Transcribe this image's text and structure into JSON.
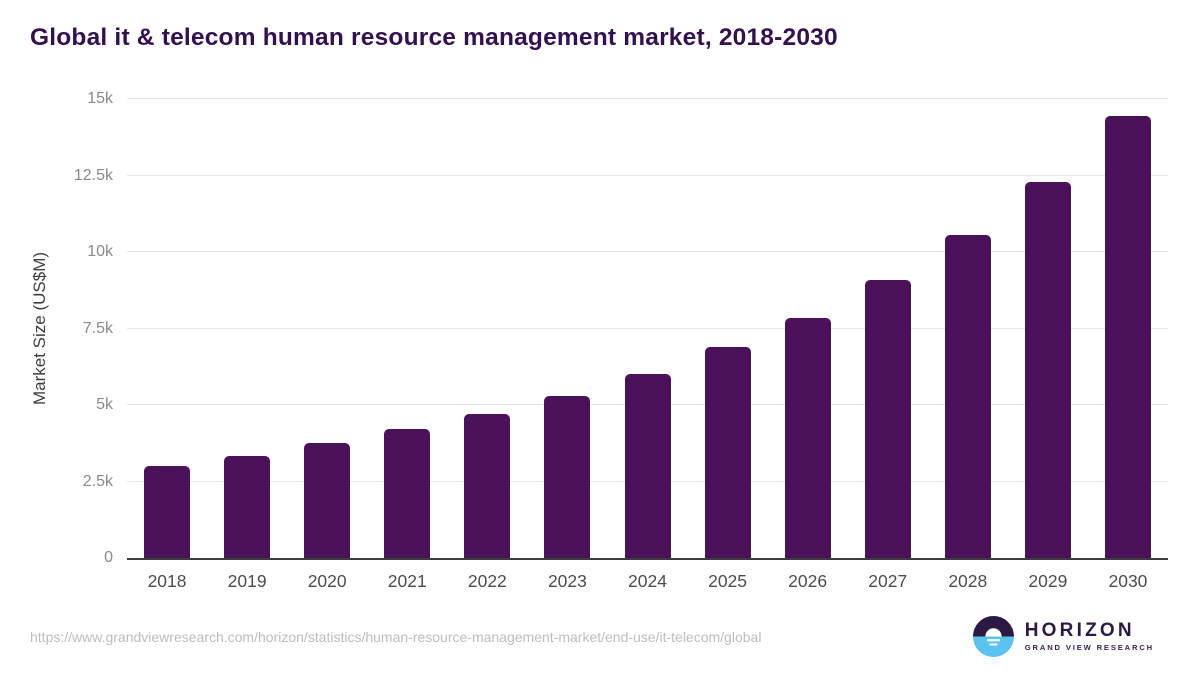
{
  "title": "Global it & telecom human resource management market, 2018-2030",
  "chart_data": {
    "type": "bar",
    "title": "Global it & telecom human resource management market, 2018-2030",
    "categories": [
      "2018",
      "2019",
      "2020",
      "2021",
      "2022",
      "2023",
      "2024",
      "2025",
      "2026",
      "2027",
      "2028",
      "2029",
      "2030"
    ],
    "values": [
      3000,
      3350,
      3750,
      4200,
      4700,
      5300,
      6000,
      6900,
      7850,
      9100,
      10550,
      12300,
      14450
    ],
    "xlabel": "",
    "ylabel": "Market Size (US$M)",
    "ylim": [
      0,
      15000
    ],
    "yticks": [
      {
        "value": 0,
        "label": "0"
      },
      {
        "value": 2500,
        "label": "2.5k"
      },
      {
        "value": 5000,
        "label": "5k"
      },
      {
        "value": 7500,
        "label": "7.5k"
      },
      {
        "value": 10000,
        "label": "10k"
      },
      {
        "value": 12500,
        "label": "12.5k"
      },
      {
        "value": 15000,
        "label": "15k"
      }
    ],
    "grid": "horizontal",
    "legend": "none"
  },
  "colors": {
    "bar": "#4a1259",
    "title": "#331050",
    "grid": "#e8e8e8",
    "axis": "#3d3d3d",
    "y_tick": "#8a8a8a",
    "x_tick": "#4d4d4d",
    "url": "#bdbdbd",
    "logo_purple": "#2c1a45",
    "logo_blue": "#5bc3ef"
  },
  "footer": {
    "source_url": "https://www.grandviewresearch.com/horizon/statistics/human-resource-management-market/end-use/it-telecom/global",
    "logo": {
      "name": "HORIZON",
      "subtitle": "GRAND VIEW RESEARCH"
    }
  }
}
